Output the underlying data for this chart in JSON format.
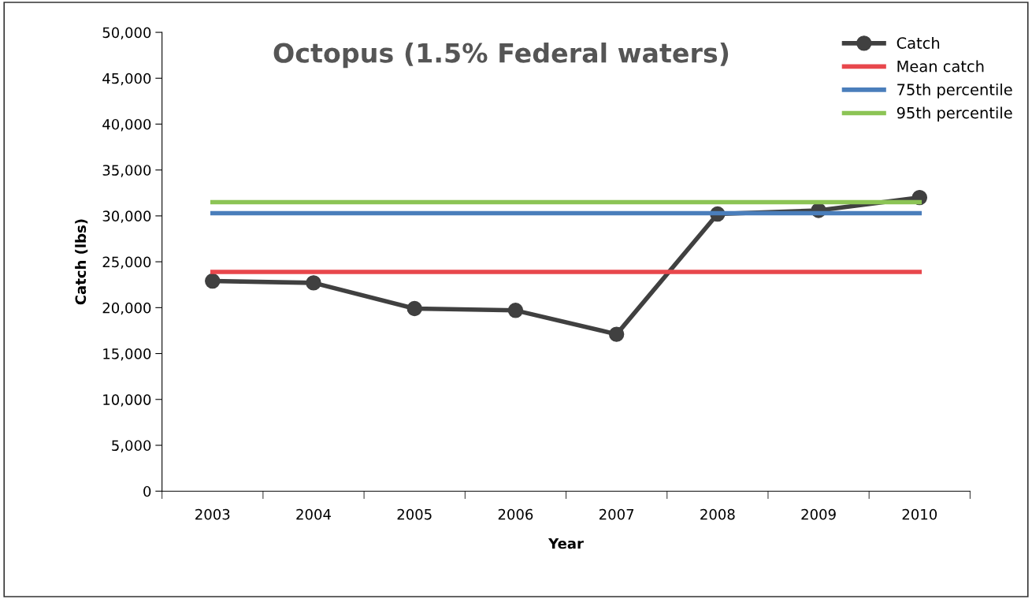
{
  "chart_data": {
    "type": "line",
    "title": "Octopus (1.5% Federal waters)",
    "xlabel": "Year",
    "ylabel": "Catch (lbs)",
    "categories": [
      "2003",
      "2004",
      "2005",
      "2006",
      "2007",
      "2008",
      "2009",
      "2010"
    ],
    "series": [
      {
        "name": "Catch",
        "color": "#404040",
        "marker": "circle",
        "values": [
          22900,
          22700,
          19900,
          19700,
          17100,
          30200,
          30600,
          32000
        ]
      },
      {
        "name": "Mean catch",
        "color": "#e8474c",
        "marker": "none",
        "values": [
          23900,
          23900,
          23900,
          23900,
          23900,
          23900,
          23900,
          23900
        ]
      },
      {
        "name": "75th percentile",
        "color": "#4a7ebb",
        "marker": "none",
        "values": [
          30300,
          30300,
          30300,
          30300,
          30300,
          30300,
          30300,
          30300
        ]
      },
      {
        "name": "95th percentile",
        "color": "#8cc455",
        "marker": "none",
        "values": [
          31500,
          31500,
          31500,
          31500,
          31500,
          31500,
          31500,
          31500
        ]
      }
    ],
    "ylim": [
      0,
      50000
    ],
    "yticks": [
      {
        "value": 0,
        "label": "0"
      },
      {
        "value": 5000,
        "label": "5,000"
      },
      {
        "value": 10000,
        "label": "10,000"
      },
      {
        "value": 15000,
        "label": "15,000"
      },
      {
        "value": 20000,
        "label": "20,000"
      },
      {
        "value": 25000,
        "label": "25,000"
      },
      {
        "value": 30000,
        "label": "30,000"
      },
      {
        "value": 35000,
        "label": "35,000"
      },
      {
        "value": 40000,
        "label": "40,000"
      },
      {
        "value": 45000,
        "label": "45,000"
      },
      {
        "value": 50000,
        "label": "50,000"
      }
    ],
    "grid": false,
    "legend": "top right",
    "line_style": "solid"
  }
}
